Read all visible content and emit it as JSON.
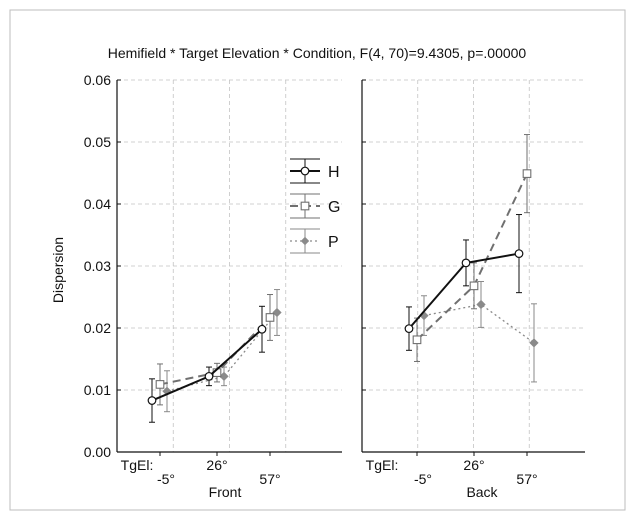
{
  "chart_data": {
    "type": "line",
    "title": "Hemifield * Target Elevation * Condition, F(4, 70)=9.4305, p=.00000",
    "ylabel": "Dispersion",
    "ylim": [
      0.0,
      0.06
    ],
    "yticks": [
      "0.00",
      "0.01",
      "0.02",
      "0.03",
      "0.04",
      "0.05",
      "0.06"
    ],
    "x_prefix": "TgEl:",
    "categories": [
      "-5°",
      "26°",
      "57°"
    ],
    "grid": true,
    "legend_position": "right of front panel",
    "series_names": [
      "H",
      "G",
      "P"
    ],
    "panels": [
      {
        "label": "Front",
        "series": [
          {
            "name": "H",
            "values": [
              0.0083,
              0.0122,
              0.0198
            ],
            "err": [
              0.0035,
              0.0015,
              0.0037
            ]
          },
          {
            "name": "G",
            "values": [
              0.0109,
              0.0128,
              0.0217
            ],
            "err": [
              0.0033,
              0.0015,
              0.0037
            ]
          },
          {
            "name": "P",
            "values": [
              0.0098,
              0.0122,
              0.0225
            ],
            "err": [
              0.0033,
              0.0015,
              0.0037
            ]
          }
        ]
      },
      {
        "label": "Back",
        "series": [
          {
            "name": "H",
            "values": [
              0.0199,
              0.0305,
              0.032
            ],
            "err": [
              0.0035,
              0.0037,
              0.0063
            ]
          },
          {
            "name": "G",
            "values": [
              0.0181,
              0.0268,
              0.0449
            ],
            "err": [
              0.0035,
              0.0037,
              0.0063
            ]
          },
          {
            "name": "P",
            "values": [
              0.022,
              0.0238,
              0.0176
            ],
            "err": [
              0.0032,
              0.0037,
              0.0063
            ]
          }
        ]
      }
    ],
    "colors": {
      "H": "#111111",
      "G": "#707070",
      "P": "#8a8a8a",
      "grid": "#c4c4c4"
    }
  }
}
